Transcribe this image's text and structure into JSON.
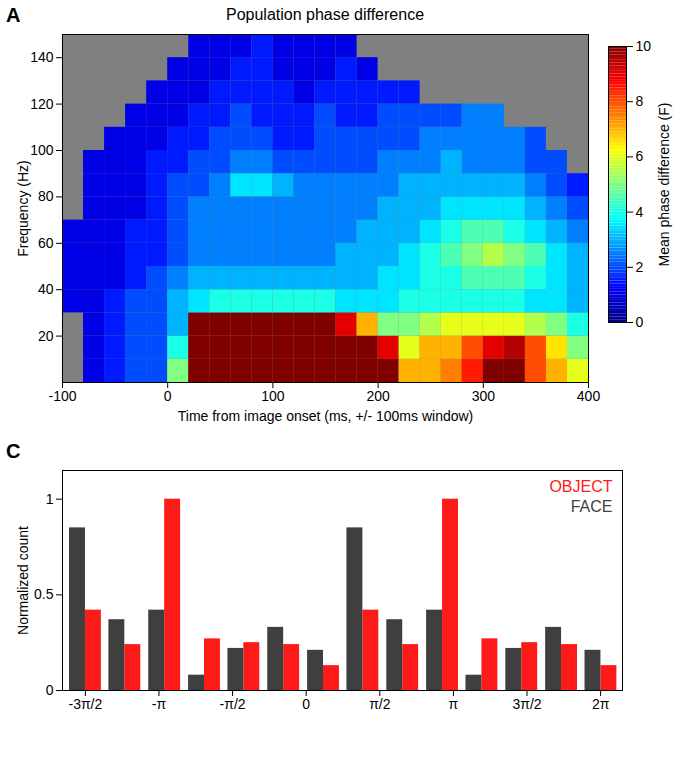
{
  "chart_data": [
    {
      "panel_label": "A",
      "type": "heatmap",
      "title": "Population phase difference",
      "x_label": "Time from image onset (ms, +/- 100ms window)",
      "y_label": "Frequency (Hz)",
      "x": [
        -100,
        -80,
        -60,
        -40,
        -20,
        0,
        20,
        40,
        60,
        80,
        100,
        120,
        140,
        160,
        180,
        200,
        220,
        240,
        260,
        280,
        300,
        320,
        340,
        360,
        380
      ],
      "y": [
        0,
        10,
        20,
        30,
        40,
        50,
        60,
        70,
        80,
        90,
        100,
        110,
        120,
        130,
        140
      ],
      "values": [
        [
          null,
          1,
          1.5,
          2,
          2,
          5,
          10,
          10,
          10,
          10,
          10,
          10,
          10,
          10,
          10,
          10,
          7,
          7,
          7.5,
          8.5,
          10,
          10,
          8,
          7,
          6
        ],
        [
          null,
          1,
          1.5,
          2,
          2,
          4,
          10,
          10,
          10,
          10,
          10,
          10,
          10,
          10,
          10,
          9,
          6,
          7,
          7,
          8,
          9,
          9.5,
          8,
          6.5,
          5
        ],
        [
          null,
          1,
          1.5,
          2,
          2,
          3,
          10,
          10,
          10,
          10,
          10,
          10,
          10,
          9,
          7,
          5,
          5,
          5.5,
          6,
          6,
          6,
          6,
          5.5,
          5,
          4
        ],
        [
          1,
          1,
          1.5,
          2,
          2,
          3,
          3.5,
          4,
          4,
          4,
          4,
          4,
          4,
          3.5,
          3.5,
          3.5,
          4,
          4,
          4,
          4,
          4,
          4,
          3.5,
          3.5,
          3
        ],
        [
          1,
          1,
          1,
          1.5,
          2,
          2.5,
          3,
          3,
          3,
          3,
          3,
          3,
          3,
          3,
          3,
          3.5,
          3.5,
          4,
          4,
          4.5,
          4.5,
          4.5,
          4,
          3.5,
          3
        ],
        [
          1,
          1,
          1,
          1.5,
          1.5,
          2,
          2.5,
          2.5,
          2.5,
          2.5,
          2.5,
          2.5,
          2.5,
          3,
          3,
          3,
          3.5,
          4,
          4.5,
          5,
          5.5,
          5,
          4.5,
          3.5,
          3
        ],
        [
          1,
          1,
          1,
          1.5,
          1.5,
          2,
          2.5,
          2.5,
          2.5,
          2.5,
          2.5,
          2.5,
          2.5,
          2.5,
          3,
          3,
          3,
          3.5,
          4,
          4.5,
          4.5,
          4,
          3.5,
          3,
          2.5
        ],
        [
          null,
          1,
          1,
          1,
          1.5,
          2,
          2.5,
          2.5,
          2.5,
          2.5,
          2.5,
          2.5,
          2.5,
          2.5,
          2.5,
          3,
          3,
          3,
          3.5,
          3.5,
          3.5,
          3.5,
          3,
          2.5,
          2
        ],
        [
          null,
          1,
          1,
          1,
          1.5,
          2,
          2,
          2.5,
          3.5,
          3.5,
          3,
          2.5,
          2.5,
          2.5,
          2.5,
          2.5,
          3,
          3,
          3,
          3,
          3,
          3,
          2.5,
          2,
          1.5
        ],
        [
          null,
          1,
          1,
          1,
          1.5,
          1.5,
          2,
          2,
          2.5,
          2.5,
          2,
          2,
          2,
          2,
          2,
          2.5,
          2.5,
          2.5,
          3,
          2.5,
          2.5,
          2.5,
          2,
          2,
          null
        ],
        [
          null,
          null,
          1,
          1,
          1,
          1.5,
          1.5,
          2,
          2,
          2,
          1.5,
          1.5,
          2,
          2,
          2,
          2,
          2,
          2.5,
          2.5,
          2.5,
          2.5,
          2.5,
          2,
          null,
          null
        ],
        [
          null,
          null,
          null,
          1,
          1,
          1,
          1.5,
          1.5,
          2,
          1.5,
          1.5,
          1.5,
          2,
          1.5,
          1.5,
          2,
          2,
          2,
          2,
          2.5,
          2.5,
          null,
          null,
          null,
          null
        ],
        [
          null,
          null,
          null,
          null,
          1,
          1,
          1,
          1.5,
          1.5,
          1.5,
          1.5,
          1,
          1.5,
          1.5,
          1.5,
          1.5,
          1.5,
          null,
          null,
          null,
          null,
          null,
          null,
          null,
          null
        ],
        [
          null,
          null,
          null,
          null,
          null,
          1,
          1,
          1,
          1.5,
          1.5,
          1,
          1,
          1,
          1.5,
          1,
          null,
          null,
          null,
          null,
          null,
          null,
          null,
          null,
          null,
          null
        ],
        [
          null,
          null,
          null,
          null,
          null,
          null,
          1,
          1,
          1,
          1.5,
          1,
          1,
          1,
          1,
          null,
          null,
          null,
          null,
          null,
          null,
          null,
          null,
          null,
          null,
          null
        ]
      ],
      "xlim": [
        -100,
        400
      ],
      "ylim": [
        0,
        150
      ],
      "xticks": [
        -100,
        0,
        100,
        200,
        300,
        400
      ],
      "yticks": [
        20,
        40,
        60,
        80,
        100,
        120,
        140
      ],
      "color_label": "Mean phase difference (F)",
      "color_range": [
        0,
        10
      ],
      "color_ticks": [
        0,
        2,
        4,
        6,
        8,
        10
      ]
    },
    {
      "panel_label": "C",
      "type": "bar",
      "y_label": "Normalized count",
      "x": [
        -4.71,
        -3.87,
        -3.02,
        -2.17,
        -1.33,
        -0.48,
        0.37,
        1.21,
        2.06,
        2.91,
        3.75,
        4.6,
        5.45,
        6.29
      ],
      "series": [
        {
          "name": "OBJECT",
          "color": "#ff1a1a",
          "values": [
            0.42,
            0.24,
            1.0,
            0.27,
            0.25,
            0.24,
            0.13,
            0.42,
            0.24,
            1.0,
            0.27,
            0.25,
            0.24,
            0.13
          ]
        },
        {
          "name": "FACE",
          "color": "#3f3f3f",
          "values": [
            0.85,
            0.37,
            0.42,
            0.08,
            0.22,
            0.33,
            0.21,
            0.85,
            0.37,
            0.42,
            0.08,
            0.22,
            0.33,
            0.21
          ]
        }
      ],
      "xlim": [
        -5.2,
        6.75
      ],
      "xticks": [
        {
          "value": -4.712,
          "label": "-3π/2"
        },
        {
          "value": -3.142,
          "label": "-π"
        },
        {
          "value": -1.571,
          "label": "-π/2"
        },
        0,
        {
          "value": 1.571,
          "label": "π/2"
        },
        {
          "value": 3.142,
          "label": "π"
        },
        {
          "value": 4.712,
          "label": "3π/2"
        },
        {
          "value": 6.283,
          "label": "2π"
        }
      ],
      "ylim": [
        0,
        1.15
      ],
      "yticks": [
        0,
        0.5,
        1
      ],
      "legend": "top-right"
    }
  ]
}
